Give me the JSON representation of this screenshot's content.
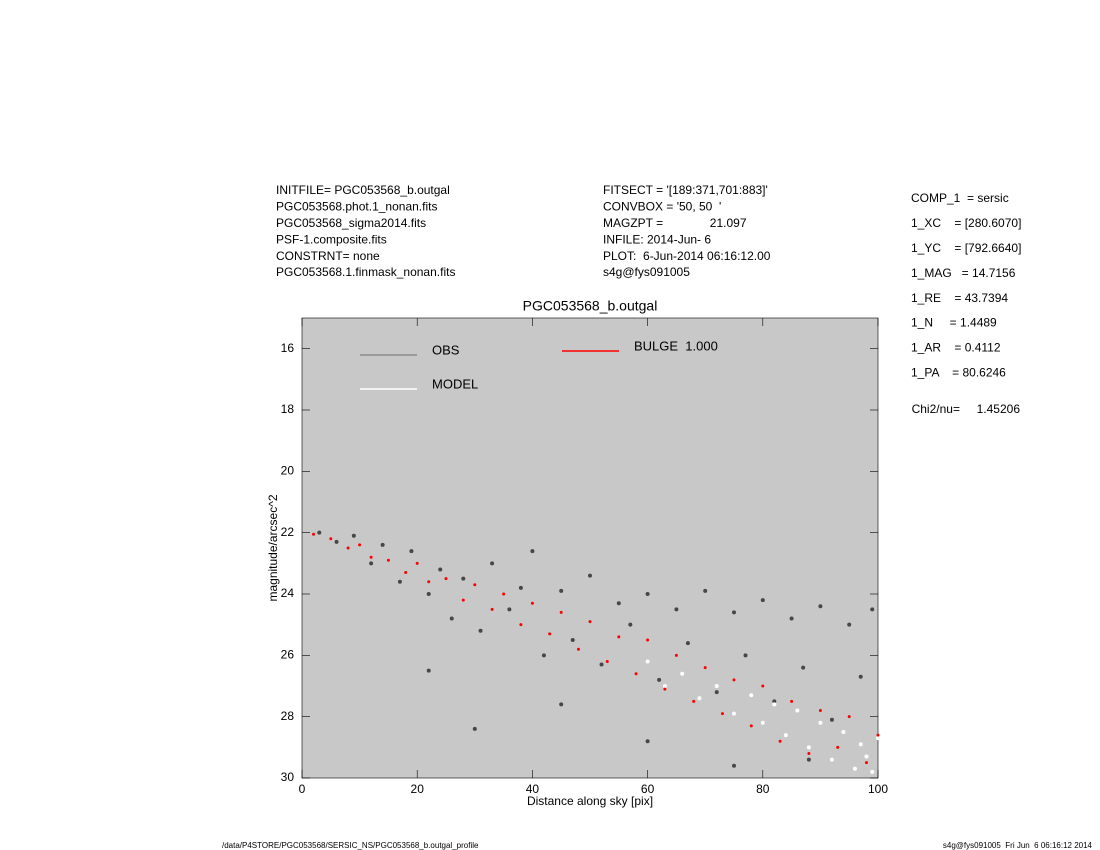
{
  "info_left": [
    "INITFILE= PGC053568_b.outgal",
    "PGC053568.phot.1_nonan.fits",
    "PGC053568_sigma2014.fits",
    "PSF-1.composite.fits",
    "CONSTRNT= none",
    "PGC053568.1.finmask_nonan.fits"
  ],
  "info_mid": [
    "FITSECT = '[189:371,701:883]'",
    "CONVBOX = '50, 50  '",
    "MAGZPT =              21.097",
    "INFILE: 2014-Jun- 6",
    "PLOT:  6-Jun-2014 06:16:12.00",
    "s4g@fys091005"
  ],
  "params": [
    "COMP_1  = sersic",
    "1_XC    = [280.6070]",
    "1_YC    = [792.6640]",
    "1_MAG   = 14.7156",
    "1_RE    = 43.7394",
    "1_N     = 1.4489",
    "1_AR    = 0.4112",
    "1_PA    = 80.6246"
  ],
  "chi2": "Chi2/nu=     1.45206",
  "footer_left": "/data/P4STORE/PGC053568/SERSIC_NS/PGC053568_b.outgal_profile",
  "footer_right": "s4g@fys091005  Fri Jun  6 06:16:12 2014",
  "chart_data": {
    "type": "scatter",
    "title": "PGC053568_b.outgal",
    "x_label": "Distance along sky [pix]",
    "y_label": "magnitude/arcsec^2",
    "xlim": [
      0,
      100
    ],
    "xticks": [
      0,
      20,
      40,
      60,
      80,
      100
    ],
    "ylim": [
      15,
      30
    ],
    "y_reversed": true,
    "yticks": [
      16,
      18,
      20,
      22,
      24,
      26,
      28,
      30
    ],
    "background": "#c8c8c8",
    "series": [
      {
        "name": "OBS",
        "color": "#474747",
        "legend_color": "#8c8c8c",
        "x": [
          3,
          6,
          9,
          12,
          14,
          17,
          19,
          22,
          24,
          26,
          28,
          31,
          33,
          36,
          38,
          40,
          42,
          45,
          47,
          50,
          52,
          55,
          57,
          60,
          62,
          65,
          67,
          70,
          72,
          75,
          77,
          80,
          82,
          85,
          87,
          90,
          92,
          95,
          97,
          99,
          22,
          30,
          45,
          60,
          75,
          88
        ],
        "y": [
          22.0,
          22.3,
          22.1,
          23.0,
          22.4,
          23.6,
          22.6,
          24.0,
          23.2,
          24.8,
          23.5,
          25.2,
          23.0,
          24.5,
          23.8,
          22.6,
          26.0,
          23.9,
          25.5,
          23.4,
          26.3,
          24.3,
          25.0,
          24.0,
          26.8,
          24.5,
          25.6,
          23.9,
          27.2,
          24.6,
          26.0,
          24.2,
          27.5,
          24.8,
          26.4,
          24.4,
          28.1,
          25.0,
          26.7,
          24.5,
          26.5,
          28.4,
          27.6,
          28.8,
          29.6,
          29.4
        ]
      },
      {
        "name": "MODEL",
        "color": "#ffffff",
        "x": [
          60,
          63,
          66,
          69,
          72,
          75,
          78,
          80,
          82,
          84,
          86,
          88,
          90,
          92,
          94,
          96,
          97,
          98,
          99,
          100
        ],
        "y": [
          26.2,
          27.0,
          26.6,
          27.4,
          27.0,
          27.9,
          27.3,
          28.2,
          27.6,
          28.6,
          27.8,
          29.0,
          28.2,
          29.4,
          28.5,
          29.7,
          28.9,
          29.3,
          29.8,
          28.7
        ]
      },
      {
        "name": "BULGE  1.000",
        "color": "#ff0000",
        "x": [
          2,
          5,
          8,
          10,
          12,
          15,
          18,
          20,
          22,
          25,
          28,
          30,
          33,
          35,
          38,
          40,
          43,
          45,
          48,
          50,
          53,
          55,
          58,
          60,
          63,
          65,
          68,
          70,
          73,
          75,
          78,
          80,
          83,
          85,
          88,
          90,
          93,
          95,
          98,
          100
        ],
        "y": [
          22.05,
          22.2,
          22.5,
          22.4,
          22.8,
          22.9,
          23.3,
          23.0,
          23.6,
          23.5,
          24.2,
          23.7,
          24.5,
          24.0,
          25.0,
          24.3,
          25.3,
          24.6,
          25.8,
          24.9,
          26.2,
          25.4,
          26.6,
          25.5,
          27.1,
          26.0,
          27.5,
          26.4,
          27.9,
          26.8,
          28.3,
          27.0,
          28.8,
          27.5,
          29.2,
          27.8,
          29.0,
          28.0,
          29.5,
          28.6
        ]
      }
    ]
  }
}
